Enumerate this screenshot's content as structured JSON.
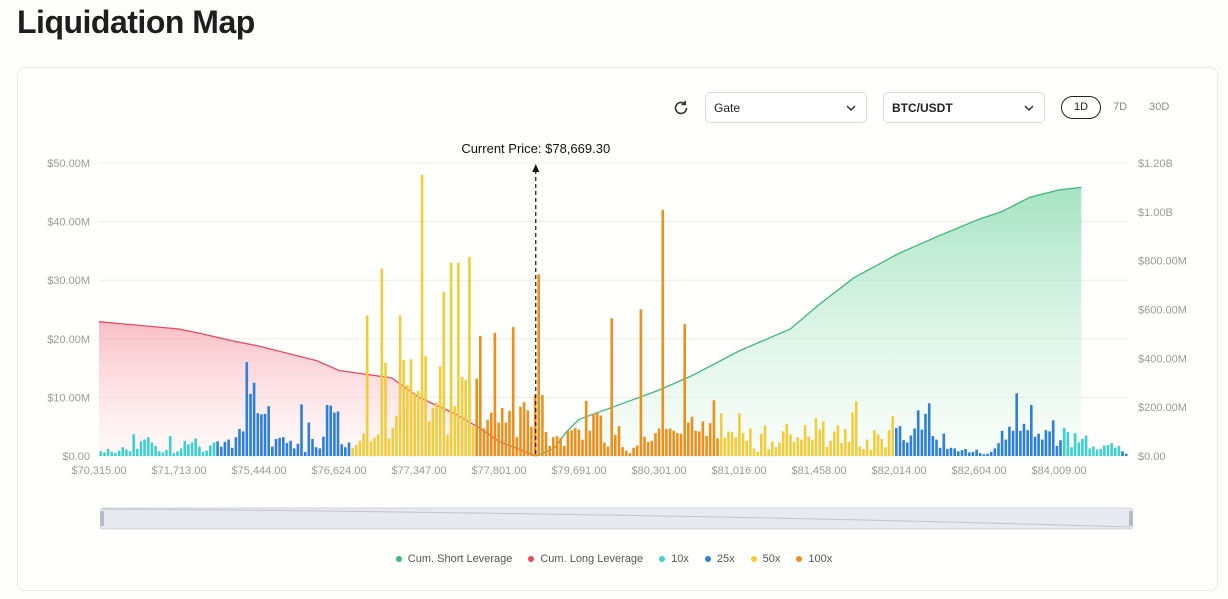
{
  "page": {
    "title": "Liquidation Map"
  },
  "controls": {
    "exchange": "Gate",
    "pair": "BTC/USDT",
    "periods": [
      {
        "label": "1D",
        "active": true
      },
      {
        "label": "7D",
        "active": false
      },
      {
        "label": "30D",
        "active": false
      }
    ]
  },
  "colors": {
    "short": "#3cb878",
    "long": "#e84a5f",
    "x10": "#3ecfcf",
    "x25": "#2d7fdc",
    "x50": "#f2cc3a",
    "x100": "#ee8f1c"
  },
  "chart_data": {
    "type": "bar",
    "current_price_label": "Current Price: $78,669.30",
    "current_price": 78669.3,
    "x_ticks": [
      "$70,315.00",
      "$71,713.00",
      "$75,444.00",
      "$76,624.00",
      "$77,347.00",
      "$77,801.00",
      "$79,691.00",
      "$80,301.00",
      "$81,016.00",
      "$81,458.00",
      "$82,014.00",
      "$82,604.00",
      "$84,009.00"
    ],
    "y_left": {
      "ticks": [
        "$0.00",
        "$10.00M",
        "$20.00M",
        "$30.00M",
        "$40.00M",
        "$50.00M"
      ],
      "min": 0,
      "max": 50000000
    },
    "y_right": {
      "ticks": [
        "$0.00",
        "$200.00M",
        "$400.00M",
        "$600.00M",
        "$800.00M",
        "$1.00B",
        "$1.20B"
      ],
      "min": 0,
      "max": 1200000000
    },
    "bar_leverage_codes": "0000000000000000000000000000000011111111111111111111111111111111111112222222222222222222222222222222222333333333333333333333333333333333333333333333333333333333333333333322222222222222222222222222222222222222222222222211111111111111111111111111111111111111111111110000000000000000",
    "bar_values_M": [
      0.8,
      0.6,
      1.2,
      0.7,
      0.5,
      0.9,
      1.5,
      1.1,
      0.8,
      3.7,
      1.2,
      2.5,
      2.8,
      3.2,
      2.3,
      1.7,
      0.8,
      0.6,
      1.0,
      3.4,
      0.5,
      0.8,
      1.3,
      2.6,
      2.0,
      2.3,
      3.0,
      1.6,
      0.7,
      0.9,
      1.8,
      2.3,
      2.5,
      1.6,
      2.4,
      2.8,
      1.4,
      3.2,
      4.6,
      4.2,
      16.0,
      10.6,
      12.5,
      7.3,
      7.1,
      7.2,
      8.5,
      1.6,
      2.9,
      3.1,
      3.2,
      2.2,
      2.6,
      1.3,
      2.1,
      8.8,
      0.7,
      5.7,
      2.9,
      1.5,
      1.3,
      3.3,
      8.7,
      8.6,
      7.4,
      7.6,
      2.0,
      1.5,
      2.3,
      1.4,
      1.9,
      2.6,
      3.8,
      2.9,
      2.5,
      3.1,
      3.7,
      17.4,
      15.9,
      3.0,
      4.8,
      6.9,
      3.6,
      16.4,
      12.1,
      16.5,
      10.8,
      11.1,
      17.6,
      17.1,
      5.9,
      8.2,
      9.1,
      15.3,
      12.7,
      3.6,
      2.7,
      8.5,
      11.6,
      13.5,
      13.0,
      4.5,
      5.1,
      13.2,
      8.5,
      4.7,
      6.2,
      7.4,
      7.3,
      5.7,
      8.2,
      5.7,
      7.7,
      6.2,
      3.2,
      8.4,
      9.2,
      7.8,
      5.0,
      10.4,
      10.9,
      10.4,
      4.1,
      1.7,
      3.2,
      3.4,
      3.1,
      1.7,
      4.3,
      4.4,
      4.8,
      4.5,
      2.8,
      9.4,
      4.3,
      7.2,
      7.4,
      6.9,
      2.3,
      1.6,
      1.8,
      3.6,
      5.1,
      1.5,
      0.9,
      0.5,
      1.4,
      1.8,
      2.5,
      3.3,
      2.4,
      2.6,
      3.9,
      4.7,
      1.5,
      4.6,
      4.7,
      4.3,
      3.9,
      3.8,
      3.3,
      5.7,
      6.7,
      4.3,
      4.2,
      5.9,
      3.4,
      5.6,
      9.5,
      3.0,
      7.3,
      3.1,
      4.2,
      4.1,
      3.2,
      7.3,
      3.9,
      2.6,
      4.7,
      1.3,
      0.7,
      3.8,
      5.2,
      1.2,
      2.5,
      1.5,
      2.3,
      4.2,
      5.5,
      3.7,
      2.4,
      3.2,
      2.8,
      5.3,
      3.3,
      2.7,
      6.5,
      4.5,
      5.9,
      1.6,
      2.6,
      4.2,
      5.2,
      2.2,
      4.6,
      2.4,
      7.4,
      9.3,
      1.6,
      1.2,
      2.8,
      1.0,
      4.4,
      3.7,
      2.9,
      1.5,
      4.4,
      6.8,
      4.8,
      5.1,
      2.7,
      2.3,
      3.5,
      4.7,
      7.8,
      4.5,
      7.2,
      9.0,
      3.4,
      2.8,
      1.4,
      3.8,
      1.2,
      1.4,
      1.3,
      0.8,
      1.0,
      1.2,
      0.6,
      0.7,
      1.1,
      0.5,
      0.3,
      0.4,
      0.7,
      1.3,
      2.2,
      4.3,
      2.8,
      5.0,
      4.3,
      10.7,
      4.3,
      5.5,
      4.4,
      8.7,
      3.3,
      3.8,
      2.8,
      4.4,
      4.2,
      6.1,
      1.7,
      2.7,
      4.8,
      4.1,
      1.5,
      3.9,
      2.3,
      2.9,
      3.5,
      1.3,
      1.6,
      1.1,
      1.2,
      1.8,
      1.9,
      2.2,
      1.4,
      1.7,
      0.8,
      0.4
    ],
    "peaks": [
      {
        "i": 73,
        "v": 24.0
      },
      {
        "i": 77,
        "v": 32.0
      },
      {
        "i": 82,
        "v": 24.0
      },
      {
        "i": 88,
        "v": 48.0
      },
      {
        "i": 94,
        "v": 28.0
      },
      {
        "i": 96,
        "v": 33.0
      },
      {
        "i": 98,
        "v": 33.0
      },
      {
        "i": 101,
        "v": 34.0
      },
      {
        "i": 104,
        "v": 20.5
      },
      {
        "i": 108,
        "v": 21.0
      },
      {
        "i": 113,
        "v": 22.0
      },
      {
        "i": 120,
        "v": 31.0
      },
      {
        "i": 140,
        "v": 23.5
      },
      {
        "i": 148,
        "v": 25.0
      },
      {
        "i": 154,
        "v": 42.0
      },
      {
        "i": 160,
        "v": 22.5
      }
    ],
    "long_cum_points_M": [
      [
        70315,
        550
      ],
      [
        71713,
        520
      ],
      [
        72800,
        500
      ],
      [
        74300,
        470
      ],
      [
        75444,
        450
      ],
      [
        76300,
        390
      ],
      [
        76624,
        350
      ],
      [
        77100,
        320
      ],
      [
        77347,
        240
      ],
      [
        77560,
        170
      ],
      [
        77700,
        110
      ],
      [
        77801,
        60
      ],
      [
        78669,
        0
      ]
    ],
    "short_cum_points_M": [
      [
        78669,
        0
      ],
      [
        79100,
        30
      ],
      [
        79400,
        100
      ],
      [
        79691,
        150
      ],
      [
        80100,
        230
      ],
      [
        80301,
        270
      ],
      [
        80600,
        330
      ],
      [
        81016,
        430
      ],
      [
        81300,
        520
      ],
      [
        81458,
        620
      ],
      [
        81700,
        730
      ],
      [
        82014,
        830
      ],
      [
        82300,
        900
      ],
      [
        82604,
        970
      ],
      [
        83000,
        1000
      ],
      [
        83500,
        1060
      ],
      [
        84009,
        1090
      ],
      [
        84400,
        1100
      ]
    ],
    "series": [
      {
        "name": "Cum. Short Leverage"
      },
      {
        "name": "Cum. Long Leverage"
      },
      {
        "name": "10x"
      },
      {
        "name": "25x"
      },
      {
        "name": "50x"
      },
      {
        "name": "100x"
      }
    ]
  }
}
